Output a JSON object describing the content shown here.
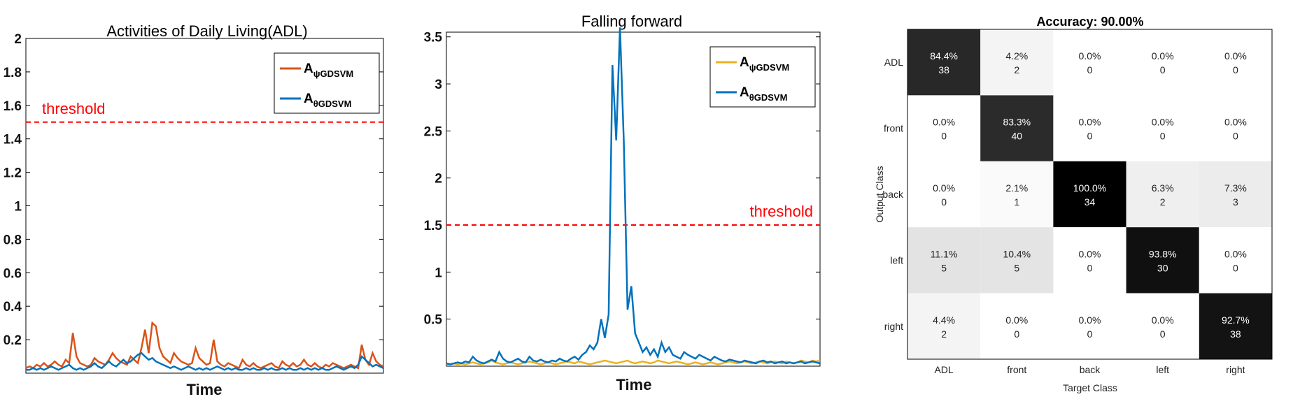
{
  "chart_data": [
    {
      "type": "line",
      "title": "Activities of Daily Living(ADL)",
      "xlabel": "Time",
      "ylabel": "",
      "ylim": [
        0,
        2
      ],
      "yticks": [
        0.2,
        0.4,
        0.6,
        0.8,
        1,
        1.2,
        1.4,
        1.6,
        1.8,
        2
      ],
      "legend_position": "top-right",
      "threshold": {
        "label": "threshold",
        "value": 1.5,
        "color": "#ff0000"
      },
      "series": [
        {
          "label": "A",
          "label_sub": "ψGDSVM",
          "color": "#d95319",
          "values": [
            0.03,
            0.04,
            0.03,
            0.05,
            0.04,
            0.06,
            0.04,
            0.05,
            0.07,
            0.05,
            0.04,
            0.08,
            0.06,
            0.24,
            0.1,
            0.06,
            0.05,
            0.04,
            0.05,
            0.09,
            0.07,
            0.06,
            0.05,
            0.08,
            0.12,
            0.09,
            0.07,
            0.06,
            0.05,
            0.1,
            0.08,
            0.06,
            0.15,
            0.26,
            0.12,
            0.3,
            0.28,
            0.15,
            0.1,
            0.08,
            0.06,
            0.12,
            0.09,
            0.07,
            0.06,
            0.05,
            0.06,
            0.15,
            0.09,
            0.07,
            0.05,
            0.06,
            0.2,
            0.07,
            0.05,
            0.04,
            0.06,
            0.05,
            0.04,
            0.03,
            0.08,
            0.05,
            0.04,
            0.06,
            0.04,
            0.03,
            0.04,
            0.05,
            0.06,
            0.04,
            0.03,
            0.07,
            0.05,
            0.04,
            0.06,
            0.04,
            0.05,
            0.08,
            0.05,
            0.04,
            0.06,
            0.04,
            0.03,
            0.05,
            0.04,
            0.06,
            0.05,
            0.04,
            0.03,
            0.04,
            0.05,
            0.04,
            0.03,
            0.17,
            0.08,
            0.05,
            0.12,
            0.07,
            0.05,
            0.04
          ]
        },
        {
          "label": "A",
          "label_sub": "θGDSVM",
          "color": "#0072bd",
          "values": [
            0.02,
            0.02,
            0.03,
            0.02,
            0.03,
            0.02,
            0.03,
            0.04,
            0.03,
            0.02,
            0.03,
            0.04,
            0.05,
            0.03,
            0.02,
            0.03,
            0.02,
            0.03,
            0.04,
            0.06,
            0.04,
            0.03,
            0.05,
            0.07,
            0.05,
            0.04,
            0.06,
            0.08,
            0.06,
            0.07,
            0.09,
            0.11,
            0.12,
            0.1,
            0.08,
            0.09,
            0.07,
            0.06,
            0.05,
            0.04,
            0.03,
            0.04,
            0.03,
            0.02,
            0.03,
            0.04,
            0.03,
            0.02,
            0.03,
            0.02,
            0.03,
            0.02,
            0.03,
            0.04,
            0.03,
            0.02,
            0.03,
            0.02,
            0.03,
            0.02,
            0.02,
            0.03,
            0.02,
            0.03,
            0.02,
            0.02,
            0.03,
            0.02,
            0.03,
            0.02,
            0.02,
            0.03,
            0.02,
            0.03,
            0.02,
            0.02,
            0.03,
            0.02,
            0.03,
            0.02,
            0.03,
            0.02,
            0.03,
            0.02,
            0.02,
            0.03,
            0.04,
            0.03,
            0.02,
            0.03,
            0.04,
            0.03,
            0.05,
            0.1,
            0.08,
            0.06,
            0.04,
            0.05,
            0.04,
            0.03
          ]
        }
      ]
    },
    {
      "type": "line",
      "title": "Falling  forward",
      "xlabel": "Time",
      "ylabel": "",
      "ylim": [
        0,
        3.55
      ],
      "yticks": [
        0.5,
        1,
        1.5,
        2,
        2.5,
        3,
        3.5
      ],
      "legend_position": "top-right",
      "threshold": {
        "label": "threshold",
        "value": 1.5,
        "color": "#ff0000"
      },
      "series": [
        {
          "label": "A",
          "label_sub": "ψGDSVM",
          "color": "#edb120",
          "values": [
            0.02,
            0.02,
            0.03,
            0.02,
            0.03,
            0.02,
            0.03,
            0.04,
            0.03,
            0.02,
            0.03,
            0.04,
            0.06,
            0.04,
            0.03,
            0.02,
            0.03,
            0.04,
            0.03,
            0.02,
            0.03,
            0.04,
            0.05,
            0.04,
            0.03,
            0.02,
            0.03,
            0.04,
            0.03,
            0.02,
            0.03,
            0.04,
            0.05,
            0.04,
            0.03,
            0.05,
            0.04,
            0.03,
            0.02,
            0.03,
            0.04,
            0.05,
            0.06,
            0.05,
            0.04,
            0.03,
            0.04,
            0.05,
            0.06,
            0.04,
            0.03,
            0.04,
            0.05,
            0.04,
            0.03,
            0.04,
            0.06,
            0.05,
            0.04,
            0.03,
            0.04,
            0.05,
            0.04,
            0.03,
            0.02,
            0.03,
            0.04,
            0.03,
            0.02,
            0.03,
            0.04,
            0.03,
            0.02,
            0.03,
            0.04,
            0.05,
            0.04,
            0.03,
            0.04,
            0.05,
            0.04,
            0.03,
            0.04,
            0.05,
            0.04,
            0.03,
            0.04,
            0.05,
            0.04,
            0.03,
            0.05,
            0.04,
            0.03,
            0.04,
            0.06,
            0.05,
            0.04,
            0.06,
            0.05,
            0.06
          ]
        },
        {
          "label": "A",
          "label_sub": "θGDSVM",
          "color": "#0072bd",
          "values": [
            0.03,
            0.02,
            0.03,
            0.04,
            0.03,
            0.05,
            0.04,
            0.1,
            0.06,
            0.04,
            0.03,
            0.05,
            0.07,
            0.05,
            0.15,
            0.08,
            0.05,
            0.04,
            0.06,
            0.08,
            0.05,
            0.04,
            0.1,
            0.06,
            0.05,
            0.07,
            0.05,
            0.04,
            0.06,
            0.05,
            0.08,
            0.06,
            0.05,
            0.08,
            0.1,
            0.07,
            0.12,
            0.15,
            0.22,
            0.18,
            0.25,
            0.5,
            0.3,
            0.55,
            3.2,
            2.4,
            3.6,
            2.4,
            0.6,
            0.85,
            0.35,
            0.25,
            0.15,
            0.2,
            0.12,
            0.18,
            0.1,
            0.25,
            0.15,
            0.2,
            0.12,
            0.1,
            0.08,
            0.15,
            0.12,
            0.1,
            0.08,
            0.12,
            0.1,
            0.08,
            0.06,
            0.1,
            0.08,
            0.06,
            0.05,
            0.07,
            0.06,
            0.05,
            0.04,
            0.06,
            0.05,
            0.04,
            0.03,
            0.05,
            0.06,
            0.04,
            0.05,
            0.03,
            0.04,
            0.05,
            0.03,
            0.04,
            0.03,
            0.04,
            0.05,
            0.03,
            0.04,
            0.05,
            0.04,
            0.03
          ]
        }
      ]
    },
    {
      "type": "heatmap",
      "title": "Accuracy: 90.00%",
      "xlabel": "Target Class",
      "ylabel": "Output Class",
      "x_categories": [
        "ADL",
        "front",
        "back",
        "left",
        "right"
      ],
      "y_categories": [
        "ADL",
        "front",
        "back",
        "left",
        "right"
      ],
      "cells": [
        [
          {
            "pct": "84.4%",
            "count": 38
          },
          {
            "pct": "4.2%",
            "count": 2
          },
          {
            "pct": "0.0%",
            "count": 0
          },
          {
            "pct": "0.0%",
            "count": 0
          },
          {
            "pct": "0.0%",
            "count": 0
          }
        ],
        [
          {
            "pct": "0.0%",
            "count": 0
          },
          {
            "pct": "83.3%",
            "count": 40
          },
          {
            "pct": "0.0%",
            "count": 0
          },
          {
            "pct": "0.0%",
            "count": 0
          },
          {
            "pct": "0.0%",
            "count": 0
          }
        ],
        [
          {
            "pct": "0.0%",
            "count": 0
          },
          {
            "pct": "2.1%",
            "count": 1
          },
          {
            "pct": "100.0%",
            "count": 34
          },
          {
            "pct": "6.3%",
            "count": 2
          },
          {
            "pct": "7.3%",
            "count": 3
          }
        ],
        [
          {
            "pct": "11.1%",
            "count": 5
          },
          {
            "pct": "10.4%",
            "count": 5
          },
          {
            "pct": "0.0%",
            "count": 0
          },
          {
            "pct": "93.8%",
            "count": 30
          },
          {
            "pct": "0.0%",
            "count": 0
          }
        ],
        [
          {
            "pct": "4.4%",
            "count": 2
          },
          {
            "pct": "0.0%",
            "count": 0
          },
          {
            "pct": "0.0%",
            "count": 0
          },
          {
            "pct": "0.0%",
            "count": 0
          },
          {
            "pct": "92.7%",
            "count": 38
          }
        ]
      ]
    }
  ]
}
